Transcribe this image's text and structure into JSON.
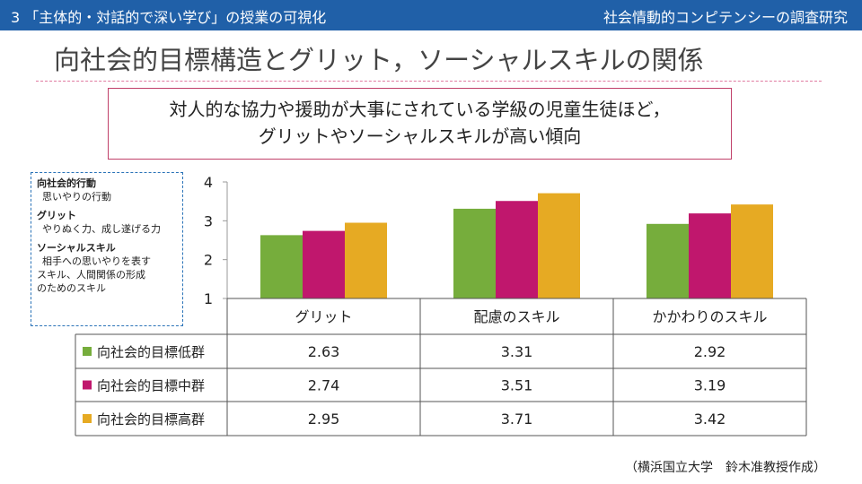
{
  "header": {
    "left": "3 「主体的・対話的で深い学び」の授業の可視化",
    "right": "社会情動的コンピテンシーの調査研究"
  },
  "page_title": "向社会的目標構造とグリット，ソーシャルスキルの関係",
  "callout": {
    "line1": "対人的な協力や援助が大事にされている学級の児童生徒ほど，",
    "line2": "グリットやソーシャルスキルが高い傾向"
  },
  "legend_box": {
    "item1_title": "向社会的行動",
    "item1_desc": "思いやりの行動",
    "item2_title": "グリット",
    "item2_desc": "やりぬく力、成し遂げる力",
    "item3_title": "ソーシャルスキル",
    "item3_desc1": "相手への思いやりを表す",
    "item3_desc2": "スキル、人間関係の形成",
    "item3_desc3": "のためのスキル"
  },
  "source": "（横浜国立大学　鈴木准教授作成）",
  "chart_data": {
    "type": "bar",
    "categories": [
      "グリット",
      "配慮のスキル",
      "かかわりのスキル"
    ],
    "series": [
      {
        "name": "向社会的目標低群",
        "color": "#76ad3c",
        "values": [
          2.63,
          3.31,
          2.92
        ]
      },
      {
        "name": "向社会的目標中群",
        "color": "#c0176d",
        "values": [
          2.74,
          3.51,
          3.19
        ]
      },
      {
        "name": "向社会的目標高群",
        "color": "#e6aa23",
        "values": [
          2.95,
          3.71,
          3.42
        ]
      }
    ],
    "ylim": [
      1,
      4
    ],
    "yticks": [
      "1",
      "2",
      "3",
      "4"
    ],
    "grid": false,
    "legend": "data-table"
  }
}
